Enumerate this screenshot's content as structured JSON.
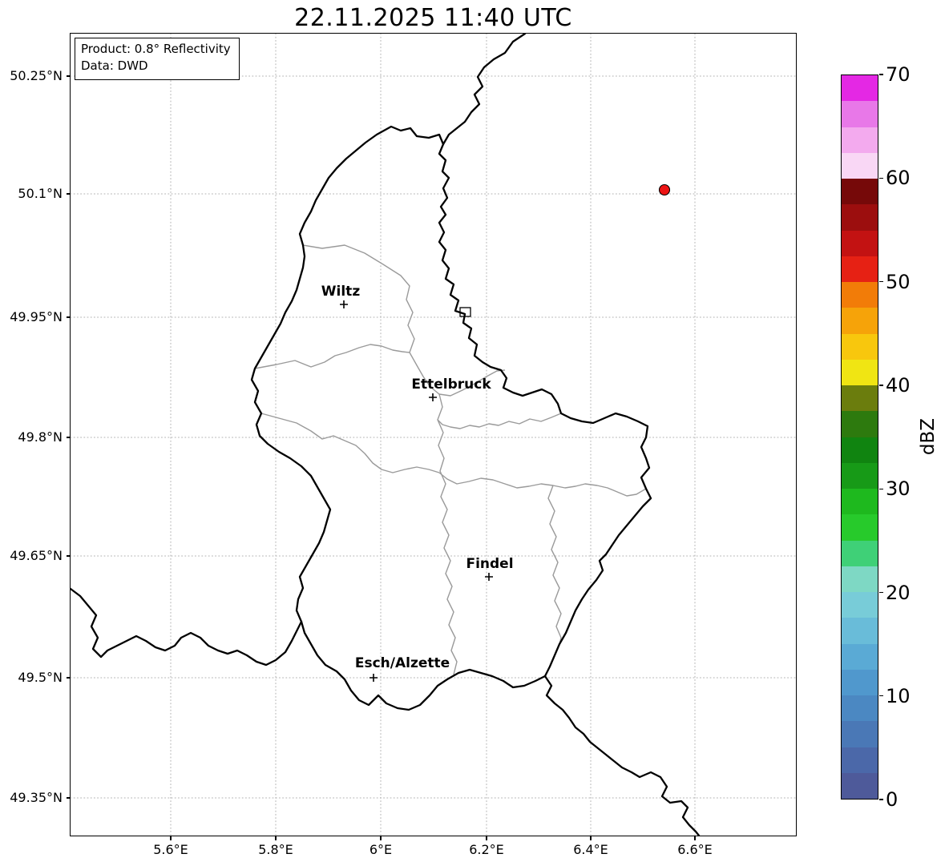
{
  "title": "22.11.2025 11:40 UTC",
  "info_box": {
    "line1": "Product: 0.8° Reflectivity",
    "line2": "Data: DWD"
  },
  "axes": {
    "lat_ticks": [
      "50.25°N",
      "50.1°N",
      "49.95°N",
      "49.8°N",
      "49.65°N",
      "49.5°N",
      "49.35°N"
    ],
    "lon_ticks": [
      "5.6°E",
      "5.8°E",
      "6°E",
      "6.2°E",
      "6.4°E",
      "6.6°E"
    ]
  },
  "cities": [
    {
      "name": "Wiltz"
    },
    {
      "name": "Ettelbruck"
    },
    {
      "name": "Findel"
    },
    {
      "name": "Esch/Alzette"
    }
  ],
  "colorbar": {
    "label": "dBZ",
    "unit_min": 0,
    "unit_max": 70,
    "ticks": [
      "0",
      "10",
      "20",
      "30",
      "40",
      "50",
      "60",
      "70"
    ],
    "band_step_dbz": 2.5,
    "colors_low_to_high": [
      "#4e5a9a",
      "#4b68a9",
      "#4a78b6",
      "#4b88c2",
      "#5098cd",
      "#5aaad5",
      "#69bcd9",
      "#78ccd8",
      "#7ed8c4",
      "#3fd077",
      "#27ca2b",
      "#1eb91e",
      "#179a17",
      "#108410",
      "#2d7a0e",
      "#6b7d0d",
      "#f0e513",
      "#f8c70d",
      "#f6a309",
      "#f27c08",
      "#e62114",
      "#c31212",
      "#9c0e0e",
      "#760909",
      "#f9d7f5",
      "#f3aaee",
      "#e878e8",
      "#e428e4"
    ]
  },
  "markers": {
    "radar_dot_color": "#ed1515"
  }
}
